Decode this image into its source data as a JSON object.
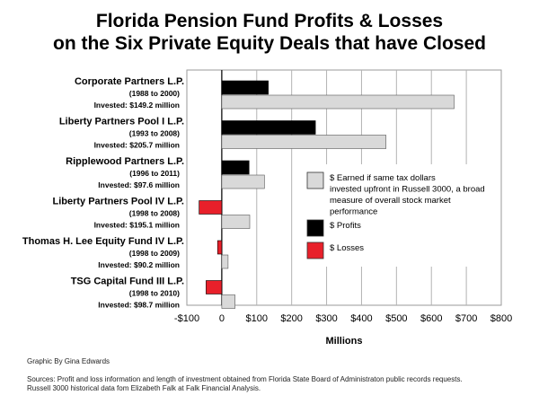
{
  "title_line1": "Florida Pension Fund Profits & Losses",
  "title_line2": "on the Six Private Equity Deals that have Closed",
  "credit": "Graphic By Gina Edwards",
  "sources_line1": "Sources: Profit and loss information and length of investment obtained from Florida State Board of Administraton public records requests.",
  "sources_line2": "Russell 3000 historical data fom Elizabeth Falk at Falk Financial Analysis.",
  "colors": {
    "profit": "#000000",
    "loss": "#e8202a",
    "russell": "#d9d9d9"
  },
  "chart_data": {
    "type": "bar",
    "orientation": "horizontal",
    "categories": [
      "Corporate Partners L.P.",
      "Liberty Partners Pool I L.P.",
      "Ripplewood Partners L.P.",
      "Liberty Partners Pool IV L.P.",
      "Thomas H. Lee Equity Fund IV L.P.",
      "TSG Capital Fund III L.P."
    ],
    "category_periods": [
      "(1988 to 2000)",
      "(1993 to 2008)",
      "(1996 to 2011)",
      "(1998 to 2008)",
      "(1998 to 2009)",
      "(1998 to 2010)"
    ],
    "category_invested": [
      "Invested: $149.2 million",
      "Invested: $205.7 million",
      "Invested: $97.6 million",
      "Invested: $195.1 million",
      "Invested: $90.2 million",
      "Invested: $98.7 million"
    ],
    "series": [
      {
        "name": "Profits / Losses",
        "values": [
          133,
          268,
          78,
          -65,
          -12,
          -45
        ]
      },
      {
        "name": "$ Earned if same tax dollars invested upfront in Russell 3000, a broad measure of overall stock market performance",
        "values": [
          665,
          470,
          122,
          80,
          18,
          38
        ]
      }
    ],
    "legend": [
      {
        "key": "russell",
        "lines": [
          "$ Earned if same tax dollars",
          "invested upfront in Russell 3000, a broad",
          "measure of overall stock market",
          "performance"
        ]
      },
      {
        "key": "profit",
        "lines": [
          "$ Profits"
        ]
      },
      {
        "key": "loss",
        "lines": [
          "$ Losses"
        ]
      }
    ],
    "xlim": [
      -100,
      800
    ],
    "xticks": [
      -100,
      0,
      100,
      200,
      300,
      400,
      500,
      600,
      700,
      800
    ],
    "xtick_labels": [
      "-$100",
      "0",
      "$100",
      "$200",
      "$300",
      "$400",
      "$500",
      "$600",
      "$700",
      "$800"
    ],
    "xlabel": "Millions",
    "legend_position": "right",
    "grid": "vertical"
  }
}
